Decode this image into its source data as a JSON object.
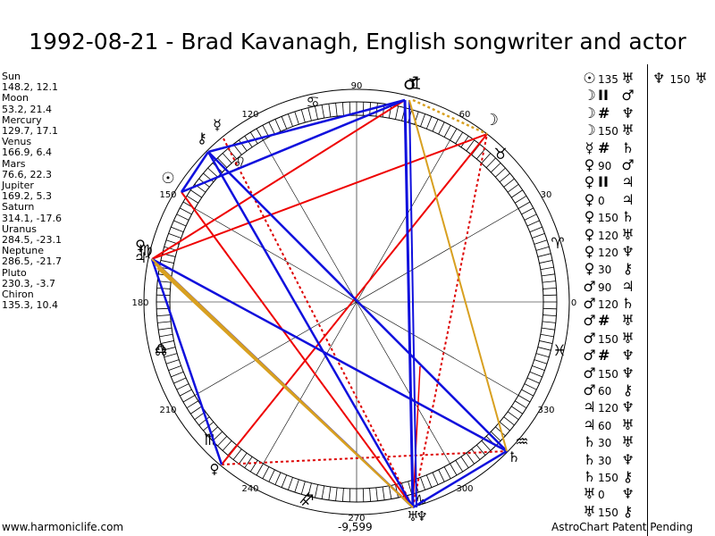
{
  "title": "1992-08-21 - Brad Kavanagh, English songwriter and actor",
  "planets": [
    {
      "name": "Sun",
      "values": "148.2, 12.1"
    },
    {
      "name": "Moon",
      "values": "53.2, 21.4"
    },
    {
      "name": "Mercury",
      "values": "129.7, 17.1"
    },
    {
      "name": "Venus",
      "values": "166.9, 6.4"
    },
    {
      "name": "Mars",
      "values": "76.6, 22.3"
    },
    {
      "name": "Jupiter",
      "values": "169.2, 5.3"
    },
    {
      "name": "Saturn",
      "values": "314.1, -17.6"
    },
    {
      "name": "Uranus",
      "values": "284.5, -23.1"
    },
    {
      "name": "Neptune",
      "values": "286.5, -21.7"
    },
    {
      "name": "Pluto",
      "values": "230.3, -3.7"
    },
    {
      "name": "Chiron",
      "values": "135.3, 10.4"
    }
  ],
  "footer": {
    "site": "www.harmoniclife.com",
    "value": "-9,599",
    "patent": "AstroChart Patent Pending"
  },
  "degree_labels": [
    "0",
    "30",
    "60",
    "90",
    "120",
    "150",
    "180",
    "210",
    "240",
    "270",
    "300",
    "330"
  ],
  "sign_glyphs": [
    "♈",
    "♉",
    "♊",
    "♋",
    "♌",
    "♍",
    "♎",
    "♏",
    "♐",
    "♑",
    "♒",
    "♓"
  ],
  "planet_glyphs": {
    "sun": "☉",
    "moon": "☽",
    "mercury": "☿",
    "venus": "♀",
    "mars": "♂",
    "jupiter": "♃",
    "saturn": "♄",
    "uranus": "♅",
    "neptune": "♆",
    "pluto": "♇",
    "chiron": "⚷",
    "node": "☊"
  },
  "aspect_list": [
    {
      "p1": "☉",
      "symbol": "135",
      "p2": "♅",
      "big": false
    },
    {
      "p1": "☽",
      "symbol": "II",
      "p2": "♂",
      "big": true
    },
    {
      "p1": "☽",
      "symbol": "#",
      "p2": "♆",
      "big": true
    },
    {
      "p1": "☽",
      "symbol": "150",
      "p2": "♅",
      "big": false
    },
    {
      "p1": "☿",
      "symbol": "#",
      "p2": "♄",
      "big": true
    },
    {
      "p1": "♀",
      "symbol": "90",
      "p2": "♂",
      "big": false
    },
    {
      "p1": "♀",
      "symbol": "II",
      "p2": "♃",
      "big": true
    },
    {
      "p1": "♀",
      "symbol": "0",
      "p2": "♃",
      "big": false
    },
    {
      "p1": "♀",
      "symbol": "150",
      "p2": "♄",
      "big": false
    },
    {
      "p1": "♀",
      "symbol": "120",
      "p2": "♅",
      "big": false
    },
    {
      "p1": "♀",
      "symbol": "120",
      "p2": "♆",
      "big": false
    },
    {
      "p1": "♀",
      "symbol": "30",
      "p2": "⚷",
      "big": false
    },
    {
      "p1": "♂",
      "symbol": "90",
      "p2": "♃",
      "big": false
    },
    {
      "p1": "♂",
      "symbol": "120",
      "p2": "♄",
      "big": false
    },
    {
      "p1": "♂",
      "symbol": "#",
      "p2": "♅",
      "big": true
    },
    {
      "p1": "♂",
      "symbol": "150",
      "p2": "♅",
      "big": false
    },
    {
      "p1": "♂",
      "symbol": "#",
      "p2": "♆",
      "big": true
    },
    {
      "p1": "♂",
      "symbol": "150",
      "p2": "♆",
      "big": false
    },
    {
      "p1": "♂",
      "symbol": "60",
      "p2": "⚷",
      "big": false
    },
    {
      "p1": "♃",
      "symbol": "120",
      "p2": "♆",
      "big": false
    },
    {
      "p1": "♃",
      "symbol": "60",
      "p2": "♅",
      "big": false
    },
    {
      "p1": "♄",
      "symbol": "30",
      "p2": "♅",
      "big": false
    },
    {
      "p1": "♄",
      "symbol": "30",
      "p2": "♆",
      "big": false
    },
    {
      "p1": "♄",
      "symbol": "150",
      "p2": "⚷",
      "big": false
    },
    {
      "p1": "♅",
      "symbol": "0",
      "p2": "♆",
      "big": false
    },
    {
      "p1": "♅",
      "symbol": "150",
      "p2": "⚷",
      "big": false
    }
  ],
  "extra_aspect": {
    "p1": "♆",
    "symbol": "150",
    "p2": "♅"
  },
  "colors": {
    "square": "#ee0000",
    "trine": "#1010dd",
    "conjunction": "#d8a020",
    "minor": "#dd0000"
  }
}
